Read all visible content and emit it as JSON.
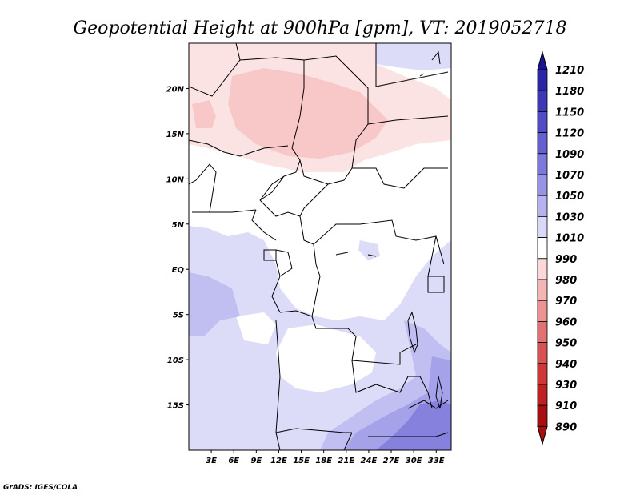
{
  "title": "Geopotential Height at 900hPa [gpm], VT: 2019052718",
  "credit": "GrADS: IGES/COLA",
  "map": {
    "lon_range": [
      0,
      35
    ],
    "lat_range": [
      -20,
      25
    ],
    "lat_labels": [
      "20N",
      "15N",
      "10N",
      "5N",
      "EQ",
      "5S",
      "10S",
      "15S"
    ],
    "lat_values": [
      20,
      15,
      10,
      5,
      0,
      -5,
      -10,
      -15
    ],
    "lon_labels": [
      "3E",
      "6E",
      "9E",
      "12E",
      "15E",
      "18E",
      "21E",
      "24E",
      "27E",
      "30E",
      "33E"
    ],
    "lon_values": [
      3,
      6,
      9,
      12,
      15,
      18,
      21,
      24,
      27,
      30,
      33
    ]
  },
  "colorbar": {
    "labels": [
      "1210",
      "1180",
      "1150",
      "1120",
      "1090",
      "1070",
      "1050",
      "1030",
      "1010",
      "990",
      "980",
      "970",
      "960",
      "950",
      "940",
      "930",
      "910",
      "890"
    ],
    "colors": [
      "#1a1495",
      "#2a26a8",
      "#3c38b8",
      "#4f4cc6",
      "#6460d2",
      "#7c79dc",
      "#9793e6",
      "#b5b2ef",
      "#d9d8f8",
      "#ffffff",
      "#fbd9d9",
      "#f4b5b5",
      "#ec9494",
      "#e27171",
      "#d95252",
      "#cf3636",
      "#bf2020",
      "#a81010"
    ]
  },
  "field_colors": {
    "bg": "#ffffff",
    "pale_red": "#fce3e3",
    "red": "#f8c8c8",
    "pale_blue": "#dcdbf8",
    "blue": "#c1bff1",
    "mid_blue": "#a5a2e9",
    "dark_blue": "#8581dd"
  }
}
